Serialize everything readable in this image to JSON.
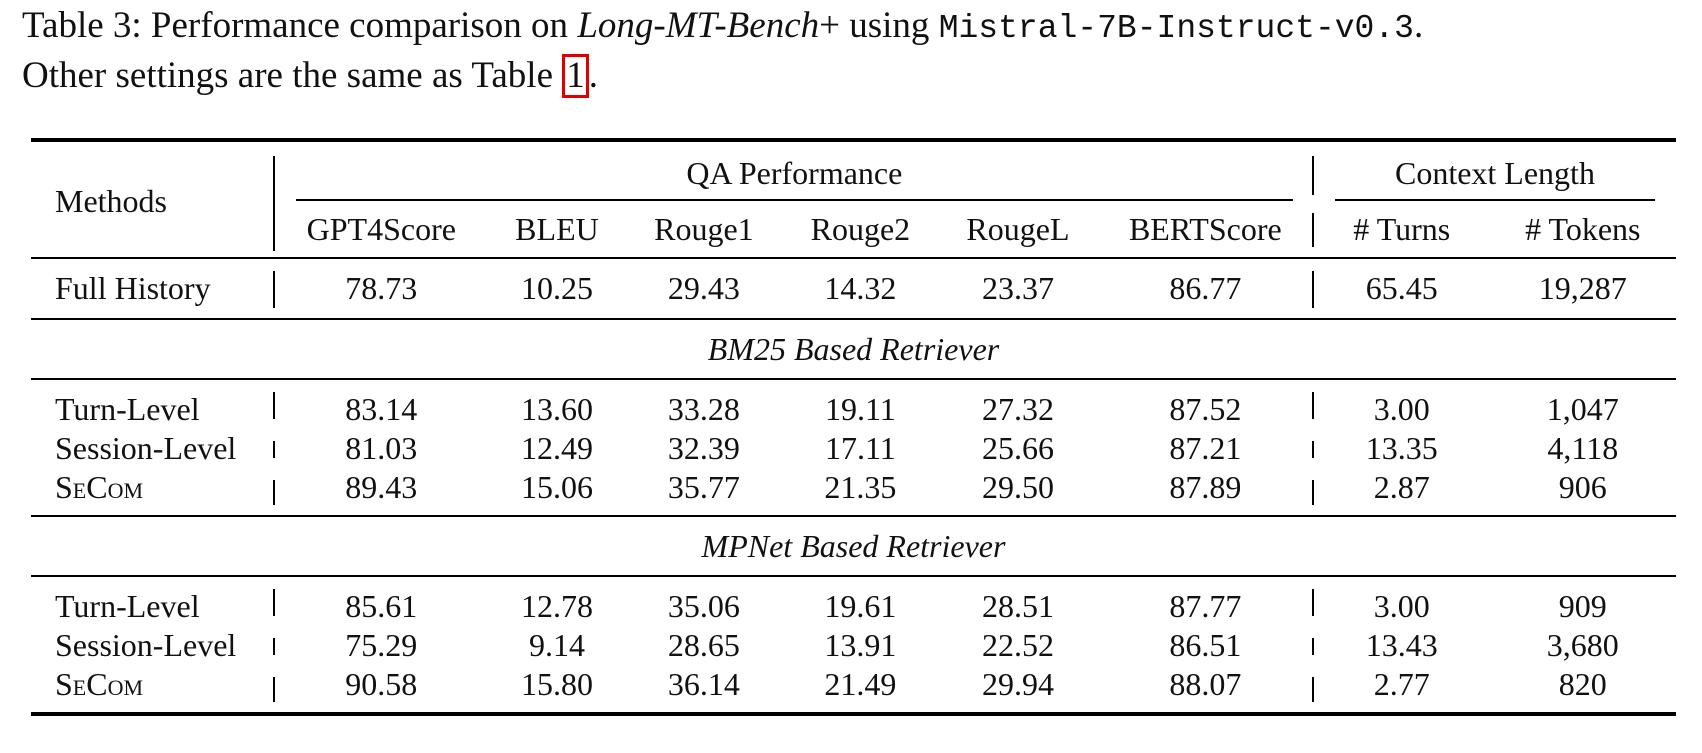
{
  "caption": {
    "prefix": "Table 3: Performance comparison on ",
    "benchmark": "Long-MT-Bench",
    "plus": "+ using ",
    "model": "Mistral-7B-Instruct-v0.3",
    "period": ".",
    "line2_prefix": "Other settings are the same as Table ",
    "ref": "1",
    "line2_suffix": "."
  },
  "header": {
    "methods": "Methods",
    "qa_group": "QA Performance",
    "ctx_group": "Context Length",
    "columns": [
      "GPT4Score",
      "BLEU",
      "Rouge1",
      "Rouge2",
      "RougeL",
      "BERTScore",
      "# Turns",
      "# Tokens"
    ]
  },
  "full_history": {
    "method": "Full History",
    "values": [
      "78.73",
      "10.25",
      "29.43",
      "14.32",
      "23.37",
      "86.77",
      "65.45",
      "19,287"
    ]
  },
  "sections": [
    {
      "title": "BM25 Based Retriever",
      "rows": [
        {
          "method": "Turn-Level",
          "values": [
            "83.14",
            "13.60",
            "33.28",
            "19.11",
            "27.32",
            "87.52",
            "3.00",
            "1,047"
          ]
        },
        {
          "method": "Session-Level",
          "values": [
            "81.03",
            "12.49",
            "32.39",
            "17.11",
            "25.66",
            "87.21",
            "13.35",
            "4,118"
          ]
        },
        {
          "method": "SeCom",
          "values": [
            "89.43",
            "15.06",
            "35.77",
            "21.35",
            "29.50",
            "87.89",
            "2.87",
            "906"
          ]
        }
      ]
    },
    {
      "title": "MPNet Based Retriever",
      "rows": [
        {
          "method": "Turn-Level",
          "values": [
            "85.61",
            "12.78",
            "35.06",
            "19.61",
            "28.51",
            "87.77",
            "3.00",
            "909"
          ]
        },
        {
          "method": "Session-Level",
          "values": [
            "75.29",
            "9.14",
            "28.65",
            "13.91",
            "22.52",
            "86.51",
            "13.43",
            "3,680"
          ]
        },
        {
          "method": "SeCom",
          "values": [
            "90.58",
            "15.80",
            "36.14",
            "21.49",
            "29.94",
            "88.07",
            "2.77",
            "820"
          ]
        }
      ]
    }
  ]
}
